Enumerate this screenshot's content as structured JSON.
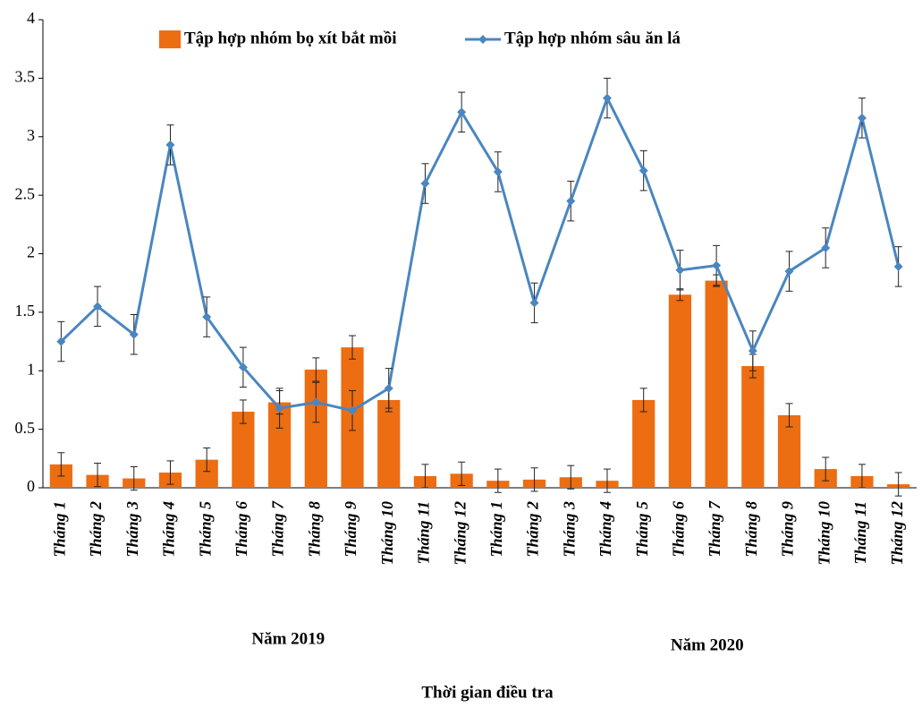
{
  "chart_data": {
    "type": "bar_line",
    "categories": [
      "Tháng 1",
      "Tháng 2",
      "Tháng 3",
      "Tháng 4",
      "Tháng 5",
      "Tháng 6",
      "Tháng 7",
      "Tháng 8",
      "Tháng 9",
      "Tháng 10",
      "Tháng 11",
      "Tháng 12",
      "Tháng 1",
      "Tháng 2",
      "Tháng 3",
      "Tháng 4",
      "Tháng 5",
      "Tháng 6",
      "Tháng 7",
      "Tháng 8",
      "Tháng 9",
      "Tháng 10",
      "Tháng 11",
      "Tháng 12"
    ],
    "groups": [
      "Năm 2019",
      "Năm 2020"
    ],
    "xlabel": "Thời gian điều tra",
    "series": [
      {
        "name": "Tập hợp nhóm bọ xít bắt mồi",
        "type": "bar",
        "color": "#ed6d12",
        "values": [
          0.2,
          0.11,
          0.08,
          0.13,
          0.24,
          0.65,
          0.73,
          1.01,
          1.2,
          0.75,
          0.1,
          0.12,
          0.06,
          0.07,
          0.09,
          0.06,
          0.75,
          1.65,
          1.77,
          1.04,
          0.62,
          0.16,
          0.1,
          0.03
        ],
        "errors": [
          0.1,
          0.1,
          0.1,
          0.1,
          0.1,
          0.1,
          0.1,
          0.1,
          0.1,
          0.1,
          0.1,
          0.1,
          0.1,
          0.1,
          0.1,
          0.1,
          0.1,
          0.05,
          0.05,
          0.1,
          0.1,
          0.1,
          0.1,
          0.1
        ]
      },
      {
        "name": "Tập hợp nhóm sâu ăn lá",
        "type": "line",
        "color": "#4a86c0",
        "values": [
          1.25,
          1.55,
          1.31,
          2.93,
          1.46,
          1.03,
          0.68,
          0.73,
          0.66,
          0.85,
          2.6,
          3.21,
          2.7,
          1.58,
          2.45,
          3.33,
          2.71,
          1.86,
          1.9,
          1.17,
          1.85,
          2.05,
          3.16,
          1.89
        ],
        "errors": [
          0.17,
          0.17,
          0.17,
          0.17,
          0.17,
          0.17,
          0.17,
          0.17,
          0.17,
          0.17,
          0.17,
          0.17,
          0.17,
          0.17,
          0.17,
          0.17,
          0.17,
          0.17,
          0.17,
          0.17,
          0.17,
          0.17,
          0.17,
          0.17
        ]
      }
    ],
    "ylim": [
      0,
      4
    ],
    "yticks": [
      0,
      0.5,
      1,
      1.5,
      2,
      2.5,
      3,
      3.5,
      4
    ],
    "grid": false
  }
}
